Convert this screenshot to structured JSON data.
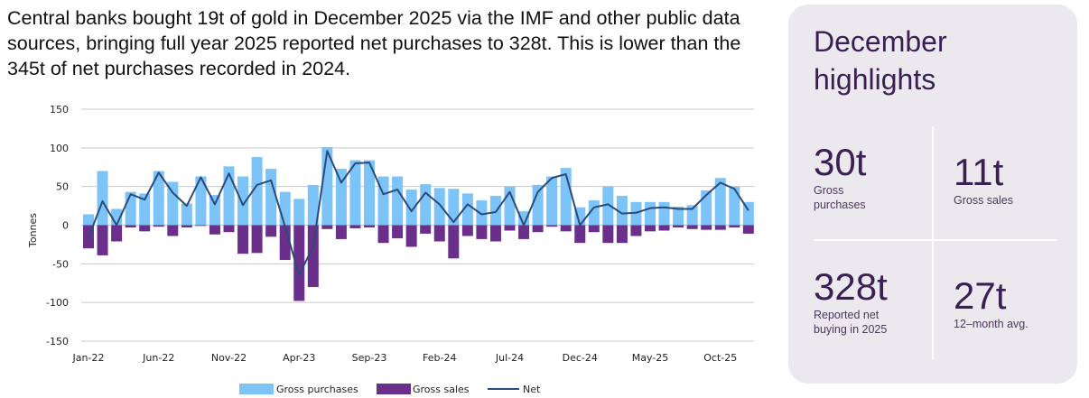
{
  "intro_text": "Central banks bought 19t of gold in December 2025 via the IMF and other public data sources, bringing full year 2025 reported net purchases to 328t. This is lower than the 345t of net purchases recorded in 2024.",
  "highlights": {
    "title": "December highlights",
    "stats": [
      {
        "value": "30t",
        "label": "Gross purchases"
      },
      {
        "value": "11t",
        "label": "Gross sales"
      },
      {
        "value": "328t",
        "label": "Reported net buying in 2025"
      },
      {
        "value": "27t",
        "label": "12–month avg."
      }
    ]
  },
  "chart_data": {
    "type": "bar",
    "ylabel": "Tonnes",
    "xlabel": "",
    "ylim": [
      -150,
      150
    ],
    "yticks": [
      "150",
      "100",
      "50",
      "0",
      "-50",
      "-100",
      "-150"
    ],
    "xtick_labels": [
      "Jan-22",
      "Jun-22",
      "Nov-22",
      "Apr-23",
      "Sep-23",
      "Feb-24",
      "Jul-24",
      "Dec-24",
      "May-25",
      "Oct-25"
    ],
    "grid": true,
    "legend_position": "bottom",
    "colors": {
      "gross_purchases": "#7cc3f7",
      "gross_sales": "#6a2f8a",
      "net": "#2b4a7a"
    },
    "categories": [
      "Jan-22",
      "Feb-22",
      "Mar-22",
      "Apr-22",
      "May-22",
      "Jun-22",
      "Jul-22",
      "Aug-22",
      "Sep-22",
      "Oct-22",
      "Nov-22",
      "Dec-22",
      "Jan-23",
      "Feb-23",
      "Mar-23",
      "Apr-23",
      "May-23",
      "Jun-23",
      "Jul-23",
      "Aug-23",
      "Sep-23",
      "Oct-23",
      "Nov-23",
      "Dec-23",
      "Jan-24",
      "Feb-24",
      "Mar-24",
      "Apr-24",
      "May-24",
      "Jun-24",
      "Jul-24",
      "Aug-24",
      "Sep-24",
      "Oct-24",
      "Nov-24",
      "Dec-24",
      "Jan-25",
      "Feb-25",
      "Mar-25",
      "Apr-25",
      "May-25",
      "Jun-25",
      "Jul-25",
      "Aug-25",
      "Sep-25",
      "Oct-25",
      "Nov-25",
      "Dec-25"
    ],
    "series": [
      {
        "name": "Gross purchases",
        "kind": "bar",
        "values": [
          14,
          70,
          21,
          43,
          41,
          70,
          56,
          28,
          63,
          39,
          76,
          63,
          88,
          73,
          43,
          34,
          52,
          101,
          73,
          84,
          84,
          63,
          63,
          46,
          53,
          48,
          47,
          41,
          32,
          38,
          50,
          18,
          52,
          63,
          74,
          23,
          32,
          50,
          38,
          30,
          30,
          30,
          24,
          26,
          45,
          61,
          50,
          30
        ]
      },
      {
        "name": "Gross sales",
        "kind": "bar",
        "values": [
          -30,
          -39,
          -21,
          -3,
          -8,
          -2,
          -14,
          -3,
          -1,
          -12,
          -9,
          -37,
          -36,
          -15,
          -45,
          -98,
          -80,
          -5,
          -18,
          -4,
          -3,
          -23,
          -17,
          -28,
          -11,
          -21,
          -43,
          -14,
          -18,
          -21,
          -7,
          -18,
          -9,
          -2,
          -8,
          -23,
          -9,
          -23,
          -23,
          -14,
          -8,
          -7,
          -3,
          -5,
          -6,
          -6,
          -3,
          -11
        ]
      },
      {
        "name": "Net",
        "kind": "line",
        "values": [
          -16,
          31,
          0,
          40,
          33,
          68,
          42,
          25,
          62,
          27,
          67,
          26,
          52,
          58,
          -2,
          -64,
          -28,
          96,
          55,
          80,
          81,
          40,
          46,
          18,
          42,
          27,
          4,
          27,
          14,
          17,
          43,
          0,
          43,
          61,
          66,
          0,
          23,
          27,
          15,
          16,
          22,
          23,
          21,
          21,
          39,
          55,
          47,
          19
        ]
      }
    ]
  }
}
